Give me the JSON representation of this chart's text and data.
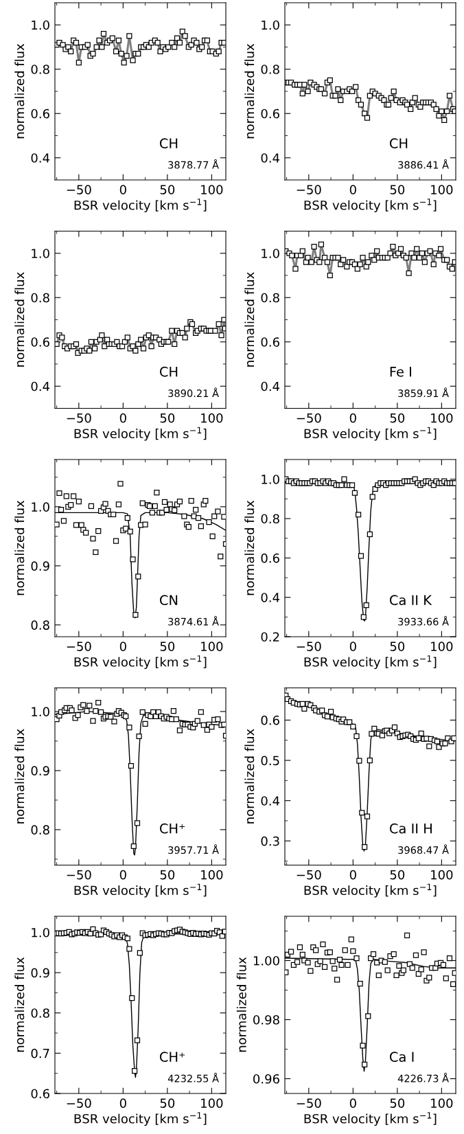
{
  "chart_data": [
    {
      "type": "line",
      "xlabel": "BSR velocity [km s$^{−1}$]",
      "ylabel": "normalized flux",
      "xlim": [
        -77,
        116
      ],
      "xticks": [
        -50,
        0,
        50,
        100,
        {
          "value": -75,
          "label": null
        },
        {
          "value": -25,
          "label": null
        },
        {
          "value": 25,
          "label": null
        },
        {
          "value": 75,
          "label": null
        }
      ],
      "ylim": [
        0.3,
        1.1
      ],
      "yticks": [
        0.4,
        0.6,
        0.8,
        {
          "value": 1.0,
          "label": "1.0"
        },
        {
          "value": 0.5,
          "label": null
        },
        {
          "value": 0.7,
          "label": null
        },
        {
          "value": 0.9,
          "label": null
        }
      ],
      "grid": false,
      "annotations": [
        "CH",
        "3878.77 Å"
      ],
      "series": [
        {
          "color": "#808080",
          "marker": "square",
          "x": [
            -75,
            -72,
            -68,
            -65,
            -62,
            -59,
            -56,
            -53,
            -50,
            -47,
            -43,
            -40,
            -37,
            -34,
            -30,
            -27,
            -24,
            -22,
            -18,
            -15,
            -12,
            -8,
            -5,
            -2,
            1,
            4,
            7,
            11,
            14,
            17,
            20,
            23,
            26,
            29,
            32,
            36,
            39,
            42,
            45,
            48,
            51,
            55,
            58,
            61,
            64,
            67,
            70,
            74,
            77,
            80,
            83,
            86,
            89,
            92,
            95,
            98,
            101,
            105,
            108,
            111,
            114
          ],
          "values": [
            0.91,
            0.92,
            0.91,
            0.89,
            0.9,
            0.88,
            0.93,
            0.92,
            0.83,
            0.9,
            0.9,
            0.91,
            0.86,
            0.87,
            0.9,
            0.93,
            0.9,
            0.96,
            0.92,
            0.93,
            0.94,
            0.88,
            0.93,
            0.87,
            0.83,
            0.86,
            0.95,
            0.84,
            0.87,
            0.87,
            0.9,
            0.9,
            0.91,
            0.9,
            0.92,
            0.93,
            0.92,
            0.88,
            0.9,
            0.89,
            0.9,
            0.92,
            0.9,
            0.94,
            0.92,
            0.97,
            0.95,
            0.9,
            0.91,
            0.93,
            0.92,
            0.89,
            0.9,
            0.93,
            0.93,
            0.88,
            0.88,
            0.87,
            0.88,
            0.92,
            0.92
          ]
        }
      ]
    },
    {
      "type": "line",
      "xlabel": "BSR velocity [km s$^{−1}$]",
      "ylabel": "normalized flux",
      "xlim": [
        -77,
        116
      ],
      "xticks": [
        -50,
        0,
        50,
        100,
        {
          "value": -75,
          "label": null
        },
        {
          "value": -25,
          "label": null
        },
        {
          "value": 25,
          "label": null
        },
        {
          "value": 75,
          "label": null
        }
      ],
      "ylim": [
        0.3,
        1.1
      ],
      "yticks": [
        0.4,
        0.6,
        0.8,
        {
          "value": 1.0,
          "label": "1.0"
        },
        {
          "value": 0.5,
          "label": null
        },
        {
          "value": 0.7,
          "label": null
        },
        {
          "value": 0.9,
          "label": null
        }
      ],
      "grid": false,
      "annotations": [
        "CH",
        "3886.41 Å"
      ],
      "series": [
        {
          "color": "#808080",
          "marker": "square",
          "x": [
            -76,
            -73,
            -70,
            -66,
            -63,
            -60,
            -57,
            -55,
            -51,
            -48,
            -44,
            -41,
            -38,
            -36,
            -32,
            -29,
            -26,
            -23,
            -20,
            -17,
            -14,
            -11,
            -7,
            -4,
            -1,
            3,
            6,
            9,
            13,
            16,
            19,
            22,
            25,
            29,
            32,
            35,
            38,
            40,
            43,
            46,
            49,
            53,
            56,
            59,
            61,
            65,
            67,
            70,
            74,
            76,
            79,
            82,
            85,
            88,
            91,
            94,
            97,
            100,
            103,
            106,
            109,
            113,
            115
          ],
          "values": [
            0.74,
            0.74,
            0.74,
            0.73,
            0.73,
            0.73,
            0.69,
            0.73,
            0.7,
            0.74,
            0.73,
            0.72,
            0.71,
            0.71,
            0.69,
            0.74,
            0.75,
            0.68,
            0.68,
            0.71,
            0.66,
            0.7,
            0.7,
            0.71,
            0.7,
            0.72,
            0.66,
            0.64,
            0.6,
            0.58,
            0.68,
            0.7,
            0.69,
            0.68,
            0.67,
            0.66,
            0.64,
            0.64,
            0.67,
            0.7,
            0.66,
            0.65,
            0.66,
            0.65,
            0.64,
            0.62,
            0.65,
            0.67,
            0.64,
            0.63,
            0.65,
            0.65,
            0.65,
            0.65,
            0.64,
            0.62,
            0.59,
            0.61,
            0.57,
            0.61,
            0.68,
            0.62,
            0.61
          ]
        }
      ]
    },
    {
      "type": "line",
      "xlabel": "BSR velocity [km s$^{−1}$]",
      "ylabel": "normalized flux",
      "xlim": [
        -77,
        116
      ],
      "xticks": [
        -50,
        0,
        50,
        100,
        {
          "value": -75,
          "label": null
        },
        {
          "value": -25,
          "label": null
        },
        {
          "value": 25,
          "label": null
        },
        {
          "value": 75,
          "label": null
        }
      ],
      "ylim": [
        0.3,
        1.1
      ],
      "yticks": [
        0.4,
        0.6,
        0.8,
        {
          "value": 1.0,
          "label": "1.0"
        },
        {
          "value": 0.5,
          "label": null
        },
        {
          "value": 0.7,
          "label": null
        },
        {
          "value": 0.9,
          "label": null
        }
      ],
      "grid": false,
      "annotations": [
        "CH",
        "3890.21 Å"
      ],
      "series": [
        {
          "color": "#808080",
          "marker": "square",
          "x": [
            -75,
            -72,
            -69,
            -66,
            -63,
            -59,
            -56,
            -53,
            -51,
            -47,
            -44,
            -41,
            -38,
            -36,
            -32,
            -30,
            -26,
            -24,
            -21,
            -18,
            -16,
            -13,
            -10,
            -7,
            -4,
            -1,
            2,
            5,
            8,
            11,
            14,
            17,
            20,
            23,
            26,
            29,
            32,
            34,
            37,
            41,
            43,
            46,
            49,
            51,
            55,
            58,
            61,
            64,
            67,
            70,
            72,
            76,
            78,
            82,
            84,
            88,
            91,
            94,
            97,
            99,
            104,
            108,
            111,
            114,
            115
          ],
          "values": [
            0.59,
            0.63,
            0.62,
            0.58,
            0.57,
            0.58,
            0.58,
            0.59,
            0.55,
            0.56,
            0.56,
            0.57,
            0.56,
            0.6,
            0.57,
            0.6,
            0.61,
            0.63,
            0.58,
            0.61,
            0.59,
            0.59,
            0.59,
            0.6,
            0.58,
            0.58,
            0.6,
            0.62,
            0.57,
            0.58,
            0.56,
            0.59,
            0.61,
            0.57,
            0.62,
            0.63,
            0.58,
            0.62,
            0.62,
            0.61,
            0.59,
            0.6,
            0.6,
            0.6,
            0.65,
            0.59,
            0.65,
            0.64,
            0.64,
            0.62,
            0.66,
            0.69,
            0.68,
            0.64,
            0.65,
            0.66,
            0.66,
            0.65,
            0.65,
            0.65,
            0.65,
            0.68,
            0.63,
            0.7,
            0.66
          ]
        }
      ]
    },
    {
      "type": "line",
      "xlabel": "BSR velocity [km s$^{−1}$]",
      "ylabel": "normalized flux",
      "xlim": [
        -77,
        116
      ],
      "xticks": [
        -50,
        0,
        50,
        100,
        {
          "value": -75,
          "label": null
        },
        {
          "value": -25,
          "label": null
        },
        {
          "value": 25,
          "label": null
        },
        {
          "value": 75,
          "label": null
        }
      ],
      "ylim": [
        0.3,
        1.1
      ],
      "yticks": [
        0.4,
        0.6,
        0.8,
        {
          "value": 1.0,
          "label": "1.0"
        },
        {
          "value": 0.5,
          "label": null
        },
        {
          "value": 0.7,
          "label": null
        },
        {
          "value": 0.9,
          "label": null
        }
      ],
      "grid": false,
      "annotations": [
        "Fe I",
        "3859.91 Å"
      ],
      "series": [
        {
          "color": "#808080",
          "marker": "square",
          "x": [
            -76,
            -72,
            -69,
            -65,
            -63,
            -59,
            -57,
            -53,
            -51,
            -47,
            -44,
            -41,
            -38,
            -36,
            -32,
            -29,
            -26,
            -23,
            -20,
            -17,
            -14,
            -11,
            -7,
            -4,
            -1,
            2,
            5,
            8,
            11,
            15,
            17,
            21,
            24,
            27,
            29,
            33,
            36,
            39,
            42,
            45,
            48,
            51,
            54,
            57,
            60,
            63,
            66,
            69,
            72,
            75,
            78,
            81,
            84,
            87,
            91,
            93,
            97,
            99,
            103,
            106,
            109,
            112,
            115
          ],
          "values": [
            1.01,
            1.0,
            0.99,
            0.93,
            0.99,
            0.99,
            1.01,
            0.96,
            0.98,
            0.96,
            1.03,
            0.97,
            0.96,
            1.04,
            0.98,
            0.96,
            0.9,
            0.98,
            0.98,
            0.98,
            0.95,
            0.97,
            0.94,
            0.96,
            0.96,
            0.95,
            0.93,
            0.95,
            0.98,
            0.94,
            0.96,
            0.99,
            0.97,
            1.01,
            0.98,
            0.98,
            0.98,
            0.98,
            1.0,
            1.03,
            0.99,
            1.0,
            1.02,
            0.99,
            0.98,
            0.91,
            1.0,
            0.98,
            1.02,
            0.98,
            1.0,
            0.96,
            1.0,
            1.01,
            0.95,
            1.0,
            0.99,
            1.02,
            0.97,
            0.97,
            0.94,
            0.93,
            0.96
          ]
        }
      ]
    },
    {
      "type": "scatter",
      "xlabel": "BSR velocity [km s$^{−1}$]",
      "ylabel": "normalized flux",
      "xlim": [
        -77,
        116
      ],
      "xticks": [
        -50,
        0,
        50,
        100,
        {
          "value": -75,
          "label": null
        },
        {
          "value": -25,
          "label": null
        },
        {
          "value": 25,
          "label": null
        },
        {
          "value": 75,
          "label": null
        }
      ],
      "ylim": [
        0.78,
        1.08
      ],
      "yticks": [
        0.8,
        0.9,
        {
          "value": 1.0,
          "label": "1.0"
        },
        {
          "value": 0.85,
          "label": null
        },
        {
          "value": 0.95,
          "label": null
        },
        {
          "value": 1.05,
          "label": null
        }
      ],
      "grid": false,
      "annotations": [
        "CN",
        "3874.61 Å"
      ],
      "series": [
        {
          "color": "#000000",
          "marker": "square",
          "x": [
            -75,
            -72,
            -70,
            -67,
            -64,
            -62,
            -59,
            -56,
            -53,
            -50,
            -47,
            -45,
            -42,
            -36,
            -34,
            -31,
            -28,
            -25,
            -22,
            -20,
            -17,
            -14,
            -11,
            -8,
            -5,
            -3,
            0,
            3,
            5,
            8,
            11,
            14,
            17,
            20,
            22,
            25,
            28,
            30,
            33,
            36,
            38,
            41,
            44,
            47,
            49,
            53,
            55,
            58,
            61,
            64,
            69,
            72,
            74,
            77,
            80,
            82,
            85,
            88,
            91,
            93,
            97,
            101,
            103,
            107,
            110,
            114,
            116
          ],
          "values": [
            0.97,
            1.023,
            0.995,
            0.976,
            1.018,
            1.0,
            1.003,
            1.018,
            0.969,
            1.009,
            0.969,
            0.961,
            0.956,
            1.001,
            0.946,
            0.923,
            0.959,
            0.993,
            0.999,
            1.005,
            0.993,
            0.987,
            0.987,
            0.942,
            1.004,
            1.039,
            0.96,
            0.963,
            0.981,
            0.958,
            0.911,
            0.817,
            0.882,
            0.969,
            1.006,
            0.97,
            1.003,
            1.001,
            0.99,
            1.001,
            1.024,
            0.99,
            0.99,
            1.008,
            0.995,
            1.004,
            0.996,
            0.994,
            1.004,
            1.009,
            0.984,
            0.97,
            0.966,
            1.01,
            0.984,
            0.995,
            0.981,
            0.967,
            1.004,
            1.01,
            0.974,
            0.95,
            0.984,
            0.992,
            0.916,
            0.983,
            0.937
          ]
        },
        {
          "type": "line",
          "color": "#000000",
          "marker": "none",
          "x": [
            -77,
            0,
            5,
            8,
            10,
            12,
            13.5,
            15,
            16,
            18,
            20,
            25,
            50,
            70,
            90,
            105,
            116
          ],
          "values": [
            0.99,
            0.99,
            0.988,
            0.95,
            0.87,
            0.82,
            0.812,
            0.83,
            0.87,
            0.95,
            0.985,
            0.99,
            0.99,
            0.987,
            0.98,
            0.97,
            0.96
          ]
        }
      ]
    },
    {
      "type": "scatter",
      "xlabel": "BSR velocity [km s$^{−1}$]",
      "ylabel": "normalized flux",
      "xlim": [
        -77,
        116
      ],
      "xticks": [
        -50,
        0,
        50,
        100,
        {
          "value": -75,
          "label": null
        },
        {
          "value": -25,
          "label": null
        },
        {
          "value": 25,
          "label": null
        },
        {
          "value": 75,
          "label": null
        }
      ],
      "ylim": [
        0.2,
        1.1
      ],
      "yticks": [
        0.2,
        0.4,
        0.6,
        0.8,
        {
          "value": 1.0,
          "label": "1.0"
        },
        {
          "value": 0.3,
          "label": null
        },
        {
          "value": 0.5,
          "label": null
        },
        {
          "value": 0.7,
          "label": null
        },
        {
          "value": 0.9,
          "label": null
        }
      ],
      "grid": false,
      "annotations": [
        "Ca II K",
        "3933.66 Å"
      ],
      "series": [
        {
          "color": "#000000",
          "marker": "square",
          "x": [
            -76,
            -73,
            -70,
            -67,
            -64,
            -61,
            -58,
            -55,
            -52,
            -49,
            -46,
            -43,
            -40,
            -37,
            -34,
            -31,
            -28,
            -25,
            -22,
            -19,
            -16,
            -13,
            -10,
            -7,
            -4,
            -1,
            2,
            6,
            9,
            12,
            15,
            19,
            22,
            25,
            28,
            31,
            34,
            37,
            40,
            43,
            46,
            49,
            52,
            55,
            58,
            61,
            64,
            67,
            70,
            73,
            76,
            79,
            82,
            85,
            88,
            91,
            94,
            97,
            100,
            103,
            106,
            109,
            112,
            115
          ],
          "values": [
            1.0,
            0.99,
            0.99,
            0.98,
            0.99,
            0.98,
            0.98,
            0.98,
            0.98,
            0.98,
            0.99,
            0.99,
            0.98,
            0.98,
            0.99,
            0.98,
            0.99,
            0.98,
            0.98,
            0.97,
            0.97,
            0.97,
            1.0,
            0.97,
            0.97,
            0.97,
            0.93,
            0.82,
            0.61,
            0.3,
            0.36,
            0.72,
            0.91,
            0.95,
            0.97,
            0.98,
            0.98,
            0.97,
            0.98,
            0.98,
            0.98,
            0.98,
            0.98,
            0.98,
            0.99,
            0.99,
            0.99,
            0.99,
            1.0,
            0.98,
            0.97,
            0.98,
            0.99,
            0.99,
            0.98,
            0.97,
            0.99,
            0.98,
            0.98,
            0.99,
            0.98,
            0.98,
            0.98,
            0.98
          ]
        },
        {
          "type": "line",
          "color": "#000000",
          "marker": "none",
          "x": [
            -77,
            -20,
            0,
            2,
            4,
            6,
            8,
            10,
            12,
            13,
            14,
            16,
            18,
            20,
            22,
            25,
            30,
            60,
            116
          ],
          "values": [
            0.985,
            0.985,
            0.975,
            0.94,
            0.85,
            0.72,
            0.55,
            0.38,
            0.285,
            0.28,
            0.3,
            0.45,
            0.66,
            0.84,
            0.93,
            0.97,
            0.98,
            0.985,
            0.985
          ]
        }
      ]
    },
    {
      "type": "scatter",
      "xlabel": "BSR velocity [km s$^{−1}$]",
      "ylabel": "normalized flux",
      "xlim": [
        -77,
        116
      ],
      "xticks": [
        -50,
        0,
        50,
        100,
        {
          "value": -75,
          "label": null
        },
        {
          "value": -25,
          "label": null
        },
        {
          "value": 25,
          "label": null
        },
        {
          "value": 75,
          "label": null
        }
      ],
      "ylim": [
        0.74,
        1.04
      ],
      "yticks": [
        0.8,
        0.9,
        {
          "value": 1.0,
          "label": "1.0"
        },
        {
          "value": 0.75,
          "label": null
        },
        {
          "value": 0.85,
          "label": null
        },
        {
          "value": 0.95,
          "label": null
        }
      ],
      "grid": false,
      "annotations": [
        "CH⁺",
        "3957.71 Å"
      ],
      "series": [
        {
          "color": "#000000",
          "marker": "square",
          "x": [
            -75,
            -72,
            -70,
            -66,
            -64,
            -60,
            -58,
            -54,
            -51,
            -48,
            -45,
            -41,
            -38,
            -34,
            -31,
            -28,
            -25,
            -22,
            -20,
            -17,
            -14,
            -10,
            -7,
            -5,
            -2,
            1,
            3,
            7,
            9,
            12,
            16,
            18,
            22,
            25,
            28,
            31,
            34,
            37,
            40,
            43,
            46,
            49,
            52,
            55,
            57,
            60,
            64,
            67,
            70,
            73,
            76,
            79,
            81,
            84,
            88,
            91,
            95,
            97,
            100,
            103,
            107,
            111,
            114,
            116
          ],
          "values": [
            0.987,
            0.993,
            0.999,
            1.002,
            1.006,
            1.006,
            1.002,
            0.989,
            0.994,
            1.007,
            1.011,
            1.001,
            1.01,
            0.984,
            1.001,
            1.015,
            0.999,
            0.988,
            0.991,
            0.992,
            0.991,
            0.983,
            0.996,
            1.001,
            0.998,
            0.994,
            0.992,
            0.973,
            0.908,
            0.772,
            0.811,
            0.958,
            0.999,
            0.979,
            0.994,
            0.992,
            0.999,
            0.992,
            0.999,
            0.992,
            0.988,
            0.991,
            0.988,
            0.987,
            1.001,
            0.987,
            0.968,
            0.979,
            0.978,
            0.978,
            0.974,
            0.973,
            0.979,
            0.984,
            0.999,
            0.977,
            0.969,
            0.978,
            0.974,
            0.986,
            0.987,
            0.977,
            0.978,
            0.959
          ]
        },
        {
          "type": "line",
          "color": "#000000",
          "marker": "none",
          "x": [
            -77,
            -40,
            -10,
            0,
            4,
            6,
            8,
            10,
            12,
            13,
            14,
            16,
            18,
            20,
            23,
            30,
            60,
            90,
            116
          ],
          "values": [
            0.995,
            1.0,
            0.997,
            0.993,
            0.985,
            0.96,
            0.9,
            0.82,
            0.76,
            0.757,
            0.77,
            0.84,
            0.93,
            0.98,
            0.994,
            0.993,
            0.986,
            0.98,
            0.976
          ]
        }
      ]
    },
    {
      "type": "scatter",
      "xlabel": "BSR velocity [km s$^{−1}$]",
      "ylabel": "normalized flux",
      "xlim": [
        -77,
        116
      ],
      "xticks": [
        -50,
        0,
        50,
        100,
        {
          "value": -75,
          "label": null
        },
        {
          "value": -25,
          "label": null
        },
        {
          "value": 25,
          "label": null
        },
        {
          "value": 75,
          "label": null
        }
      ],
      "ylim": [
        0.24,
        0.68
      ],
      "yticks": [
        0.3,
        0.4,
        0.5,
        0.6,
        {
          "value": 0.25,
          "label": null
        },
        {
          "value": 0.35,
          "label": null
        },
        {
          "value": 0.45,
          "label": null
        },
        {
          "value": 0.55,
          "label": null
        },
        {
          "value": 0.65,
          "label": null
        }
      ],
      "grid": false,
      "annotations": [
        "Ca II H",
        "3968.47 Å"
      ],
      "series": [
        {
          "color": "#000000",
          "marker": "square",
          "x": [
            -76,
            -74,
            -70,
            -67,
            -63,
            -60,
            -57,
            -55,
            -51,
            -48,
            -44,
            -42,
            -38,
            -35,
            -32,
            -29,
            -25,
            -23,
            -19,
            -16,
            -13,
            -11,
            -7,
            -4,
            0,
            4,
            7,
            10,
            13,
            16,
            19,
            21,
            24,
            27,
            29,
            33,
            36,
            38,
            41,
            44,
            47,
            50,
            53,
            56,
            59,
            62,
            65,
            68,
            71,
            74,
            77,
            80,
            83,
            86,
            88,
            92,
            95,
            97,
            101,
            104,
            107,
            111,
            114
          ],
          "values": [
            0.661,
            0.652,
            0.647,
            0.643,
            0.64,
            0.639,
            0.64,
            0.628,
            0.64,
            0.637,
            0.63,
            0.624,
            0.621,
            0.624,
            0.612,
            0.609,
            0.621,
            0.607,
            0.604,
            0.602,
            0.596,
            0.602,
            0.595,
            0.595,
            0.584,
            0.56,
            0.499,
            0.37,
            0.285,
            0.361,
            0.5,
            0.566,
            0.579,
            0.567,
            0.566,
            0.562,
            0.573,
            0.574,
            0.567,
            0.574,
            0.582,
            0.567,
            0.558,
            0.56,
            0.562,
            0.564,
            0.56,
            0.553,
            0.551,
            0.555,
            0.567,
            0.553,
            0.554,
            0.535,
            0.553,
            0.55,
            0.547,
            0.533,
            0.542,
            0.542,
            0.555,
            0.547,
            0.555
          ]
        },
        {
          "type": "line",
          "color": "#000000",
          "marker": "none",
          "x": [
            -77,
            -40,
            -10,
            0,
            3,
            5,
            7,
            9,
            11,
            12.5,
            14,
            16,
            18,
            20,
            22,
            25,
            50,
            80,
            116
          ],
          "values": [
            0.655,
            0.625,
            0.6,
            0.59,
            0.58,
            0.54,
            0.46,
            0.36,
            0.29,
            0.275,
            0.29,
            0.37,
            0.47,
            0.55,
            0.575,
            0.578,
            0.568,
            0.557,
            0.548
          ]
        }
      ]
    },
    {
      "type": "scatter",
      "xlabel": "BSR velocity [km s$^{−1}$]",
      "ylabel": "normalized flux",
      "xlim": [
        -77,
        116
      ],
      "xticks": [
        -50,
        0,
        50,
        100,
        {
          "value": -75,
          "label": null
        },
        {
          "value": -25,
          "label": null
        },
        {
          "value": 25,
          "label": null
        },
        {
          "value": 75,
          "label": null
        }
      ],
      "ylim": [
        0.6,
        1.04
      ],
      "yticks": [
        0.6,
        0.7,
        0.8,
        0.9,
        {
          "value": 1.0,
          "label": "1.0"
        },
        {
          "value": 0.65,
          "label": null
        },
        {
          "value": 0.75,
          "label": null
        },
        {
          "value": 0.85,
          "label": null
        },
        {
          "value": 0.95,
          "label": null
        }
      ],
      "grid": false,
      "annotations": [
        "CH⁺",
        "4232.55 Å"
      ],
      "series": [
        {
          "color": "#000000",
          "marker": "square",
          "x": [
            -76,
            -73,
            -70,
            -67,
            -64,
            -61,
            -58,
            -55,
            -52,
            -49,
            -46,
            -43,
            -40,
            -37,
            -34,
            -31,
            -28,
            -25,
            -22,
            -19,
            -16,
            -13,
            -10,
            -7,
            -4,
            -1,
            2,
            5,
            7,
            10,
            13,
            16,
            19,
            22,
            25,
            28,
            31,
            34,
            37,
            40,
            43,
            46,
            49,
            52,
            55,
            58,
            61,
            64,
            67,
            70,
            73,
            76,
            79,
            82,
            85,
            88,
            91,
            94,
            97,
            100,
            103,
            106,
            109,
            112,
            115
          ],
          "values": [
            0.997,
            0.998,
            0.997,
            0.998,
            0.999,
            1.001,
            0.995,
            0.997,
            1.0,
            0.999,
            1.001,
            0.998,
            1.001,
            0.997,
            1.008,
            0.998,
            0.994,
            0.995,
            1.005,
            1.001,
            0.997,
            0.994,
            0.99,
            0.993,
            0.988,
            0.993,
            0.988,
            0.985,
            0.959,
            0.837,
            0.656,
            0.732,
            0.949,
            0.998,
            0.993,
            0.994,
            0.996,
            0.993,
            0.996,
            0.998,
            0.997,
            0.995,
            0.995,
            0.999,
            0.998,
            1.003,
            1.005,
            1.007,
            1.002,
            1.0,
            0.998,
            0.996,
            0.999,
            0.996,
            0.997,
            0.995,
            0.997,
            0.996,
            0.994,
            0.998,
            0.997,
            1.004,
            1.0,
            0.991,
            1.002
          ]
        },
        {
          "type": "line",
          "color": "#000000",
          "marker": "none",
          "x": [
            -77,
            0,
            3,
            5,
            7,
            9,
            11,
            13,
            14,
            15,
            17,
            19,
            21,
            24,
            116
          ],
          "values": [
            0.998,
            0.998,
            0.99,
            0.97,
            0.92,
            0.83,
            0.72,
            0.655,
            0.64,
            0.66,
            0.76,
            0.9,
            0.975,
            0.995,
            0.998
          ]
        }
      ]
    },
    {
      "type": "scatter",
      "xlabel": "BSR velocity [km s$^{−1}$]",
      "ylabel": "normalized flux",
      "xlim": [
        -77,
        116
      ],
      "xticks": [
        -50,
        0,
        50,
        100,
        {
          "value": -75,
          "label": null
        },
        {
          "value": -25,
          "label": null
        },
        {
          "value": 25,
          "label": null
        },
        {
          "value": 75,
          "label": null
        }
      ],
      "ylim": [
        0.955,
        1.015
      ],
      "yticks": [
        0.96,
        0.98,
        {
          "value": 1.0,
          "label": "1.00"
        },
        {
          "value": 0.97,
          "label": null
        },
        {
          "value": 0.99,
          "label": null
        },
        {
          "value": 1.01,
          "label": null
        }
      ],
      "grid": false,
      "annotations": [
        "Ca I",
        "4226.73 Å"
      ],
      "series": [
        {
          "color": "#000000",
          "marker": "square",
          "x": [
            -76,
            -74,
            -70,
            -67,
            -63,
            -60,
            -57,
            -55,
            -51,
            -48,
            -45,
            -42,
            -40,
            -37,
            -34,
            -32,
            -29,
            -26,
            -23,
            -21,
            -18,
            -15,
            -13,
            -9,
            -6,
            -2,
            0,
            4,
            8,
            11,
            13,
            17,
            20,
            23,
            27,
            29,
            32,
            36,
            39,
            42,
            46,
            49,
            52,
            55,
            57,
            61,
            64,
            67,
            71,
            74,
            77,
            80,
            83,
            86,
            89,
            93,
            95,
            99,
            102,
            105,
            109,
            113,
            115
          ],
          "values": [
            0.996,
            1.002,
            1.003,
            0.9985,
            0.9995,
            1.0045,
            1.002,
            1.0,
            0.9993,
            0.9965,
            1.0045,
            1.0035,
            0.9988,
            0.9998,
            1.0055,
            0.9978,
            1.0027,
            1.0028,
            0.9998,
            0.9973,
            0.9935,
            1.0003,
            0.9985,
            1.0035,
            0.9985,
            1.0072,
            1.0032,
            1.0008,
            0.9922,
            0.9712,
            0.9648,
            0.9812,
            1.0008,
            1.0022,
            0.9993,
            0.995,
            1.0,
            0.9995,
            0.9967,
            1.0015,
            1.0022,
            0.995,
            0.9982,
            0.9958,
            0.9967,
            1.0085,
            0.9988,
            0.9975,
            1.0018,
            0.9955,
            0.997,
            1.0028,
            0.9932,
            0.9942,
            0.9975,
            0.9975,
            0.999,
            0.9992,
            0.9985,
            0.994,
            1.0008,
            0.992,
            0.9958
          ]
        },
        {
          "type": "line",
          "color": "#000000",
          "marker": "none",
          "x": [
            -77,
            0,
            3,
            5,
            7,
            9,
            11,
            12.5,
            14,
            16,
            18,
            20,
            23,
            40,
            60,
            80,
            95,
            116
          ],
          "values": [
            1.0008,
            1.0004,
            1.0,
            0.997,
            0.99,
            0.978,
            0.967,
            0.9625,
            0.966,
            0.978,
            0.992,
            0.999,
            1.0005,
            0.9998,
            0.9993,
            0.998,
            0.9975,
            0.9975
          ]
        }
      ]
    }
  ]
}
